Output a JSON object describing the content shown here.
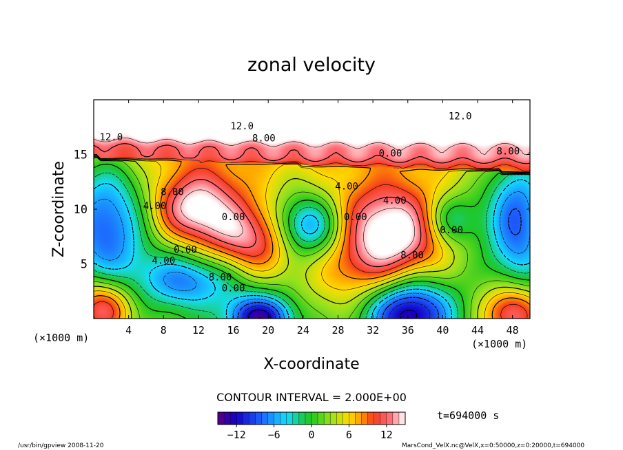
{
  "chart_data": {
    "type": "heatmap",
    "title": "zonal velocity",
    "xlabel": "X-coordinate",
    "ylabel": "Z-coordinate",
    "x_unit_left": "(×1000 m)",
    "x_unit_right": "(×1000 m)",
    "x_ticks": [
      4,
      8,
      12,
      16,
      20,
      24,
      28,
      32,
      36,
      40,
      44,
      48
    ],
    "y_ticks": [
      5,
      10,
      15
    ],
    "xlim": [
      0,
      50
    ],
    "ylim": [
      0,
      20
    ],
    "contour_interval_text": "CONTOUR INTERVAL = 2.000E+00",
    "time_text": "t=694000 s",
    "colorbar": {
      "min": -15,
      "max": 15,
      "ticks": [
        -12,
        -6,
        0,
        6,
        12
      ]
    },
    "contour_labels": [
      {
        "text": "12.0",
        "x": 17.0,
        "y": 17.3
      },
      {
        "text": "8.00",
        "x": 19.5,
        "y": 16.2
      },
      {
        "text": "12.0",
        "x": 2.0,
        "y": 16.3
      },
      {
        "text": "12.0",
        "x": 42.0,
        "y": 18.2
      },
      {
        "text": "0.00",
        "x": 34.0,
        "y": 14.8
      },
      {
        "text": "8.00",
        "x": 47.5,
        "y": 15.0
      },
      {
        "text": "4.00",
        "x": 29.0,
        "y": 11.8
      },
      {
        "text": "4.00",
        "x": 7.0,
        "y": 10.0
      },
      {
        "text": "8.00",
        "x": 9.0,
        "y": 11.3
      },
      {
        "text": "0.00",
        "x": 16.0,
        "y": 9.0
      },
      {
        "text": "0.00",
        "x": 30.0,
        "y": 9.0
      },
      {
        "text": "4.00",
        "x": 34.5,
        "y": 10.5
      },
      {
        "text": "0.00",
        "x": 41.0,
        "y": 7.8
      },
      {
        "text": "8.00",
        "x": 36.5,
        "y": 5.5
      },
      {
        "text": "0.00",
        "x": 10.5,
        "y": 6.0
      },
      {
        "text": "4.00",
        "x": 8.0,
        "y": 5.0
      },
      {
        "text": "8.00",
        "x": 14.5,
        "y": 3.5
      },
      {
        "text": "0.00",
        "x": 16.0,
        "y": 2.5
      }
    ],
    "features": [
      {
        "x": 16.0,
        "y": 20.0,
        "sx": 22,
        "sy": 4.0,
        "v": 13
      },
      {
        "x": 45.0,
        "y": 19.5,
        "sx": 12,
        "sy": 3.5,
        "v": 5
      },
      {
        "x": 20.0,
        "y": 19.8,
        "sx": 5,
        "sy": 1.2,
        "v": 4
      },
      {
        "x": 44.0,
        "y": 20.0,
        "sx": 6,
        "sy": 1.5,
        "v": 4
      },
      {
        "x": 11.5,
        "y": 10.0,
        "sx": 3.6,
        "sy": 2.2,
        "v": 12
      },
      {
        "x": 18.0,
        "y": 7.2,
        "sx": 4.0,
        "sy": 2.4,
        "v": 11
      },
      {
        "x": 34.5,
        "y": 8.0,
        "sx": 4.5,
        "sy": 3.2,
        "v": 14
      },
      {
        "x": 30.0,
        "y": 4.0,
        "sx": 4.0,
        "sy": 3.0,
        "v": 5
      },
      {
        "x": 1.5,
        "y": 8.5,
        "sx": 3.2,
        "sy": 4.5,
        "v": -10
      },
      {
        "x": 24.5,
        "y": 8.5,
        "sx": 2.8,
        "sy": 2.0,
        "v": -12
      },
      {
        "x": 11.0,
        "y": 3.5,
        "sx": 4.0,
        "sy": 1.8,
        "v": -9
      },
      {
        "x": 19.0,
        "y": 0.0,
        "sx": 2.6,
        "sy": 1.5,
        "v": -15
      },
      {
        "x": 36.0,
        "y": 0.5,
        "sx": 3.5,
        "sy": 2.2,
        "v": -16
      },
      {
        "x": 41.0,
        "y": 9.0,
        "sx": 2.2,
        "sy": 1.6,
        "v": -7
      },
      {
        "x": 48.5,
        "y": 9.0,
        "sx": 2.4,
        "sy": 4.5,
        "v": -10
      },
      {
        "x": 48.0,
        "y": 0.5,
        "sx": 2.5,
        "sy": 2.0,
        "v": 12
      },
      {
        "x": 1.0,
        "y": 1.0,
        "sx": 2.5,
        "sy": 2.0,
        "v": 12
      },
      {
        "x": 27.0,
        "y": 10.5,
        "sx": 5,
        "sy": 2.0,
        "v": 2
      },
      {
        "x": 14.0,
        "y": 12.5,
        "sx": 4,
        "sy": 1.5,
        "v": 2
      }
    ]
  },
  "footer": {
    "left": "/usr/bin/gpview  2008-11-20",
    "right": "MarsCond_VelX.nc@VelX,x=0:50000,z=0:20000,t=694000"
  }
}
